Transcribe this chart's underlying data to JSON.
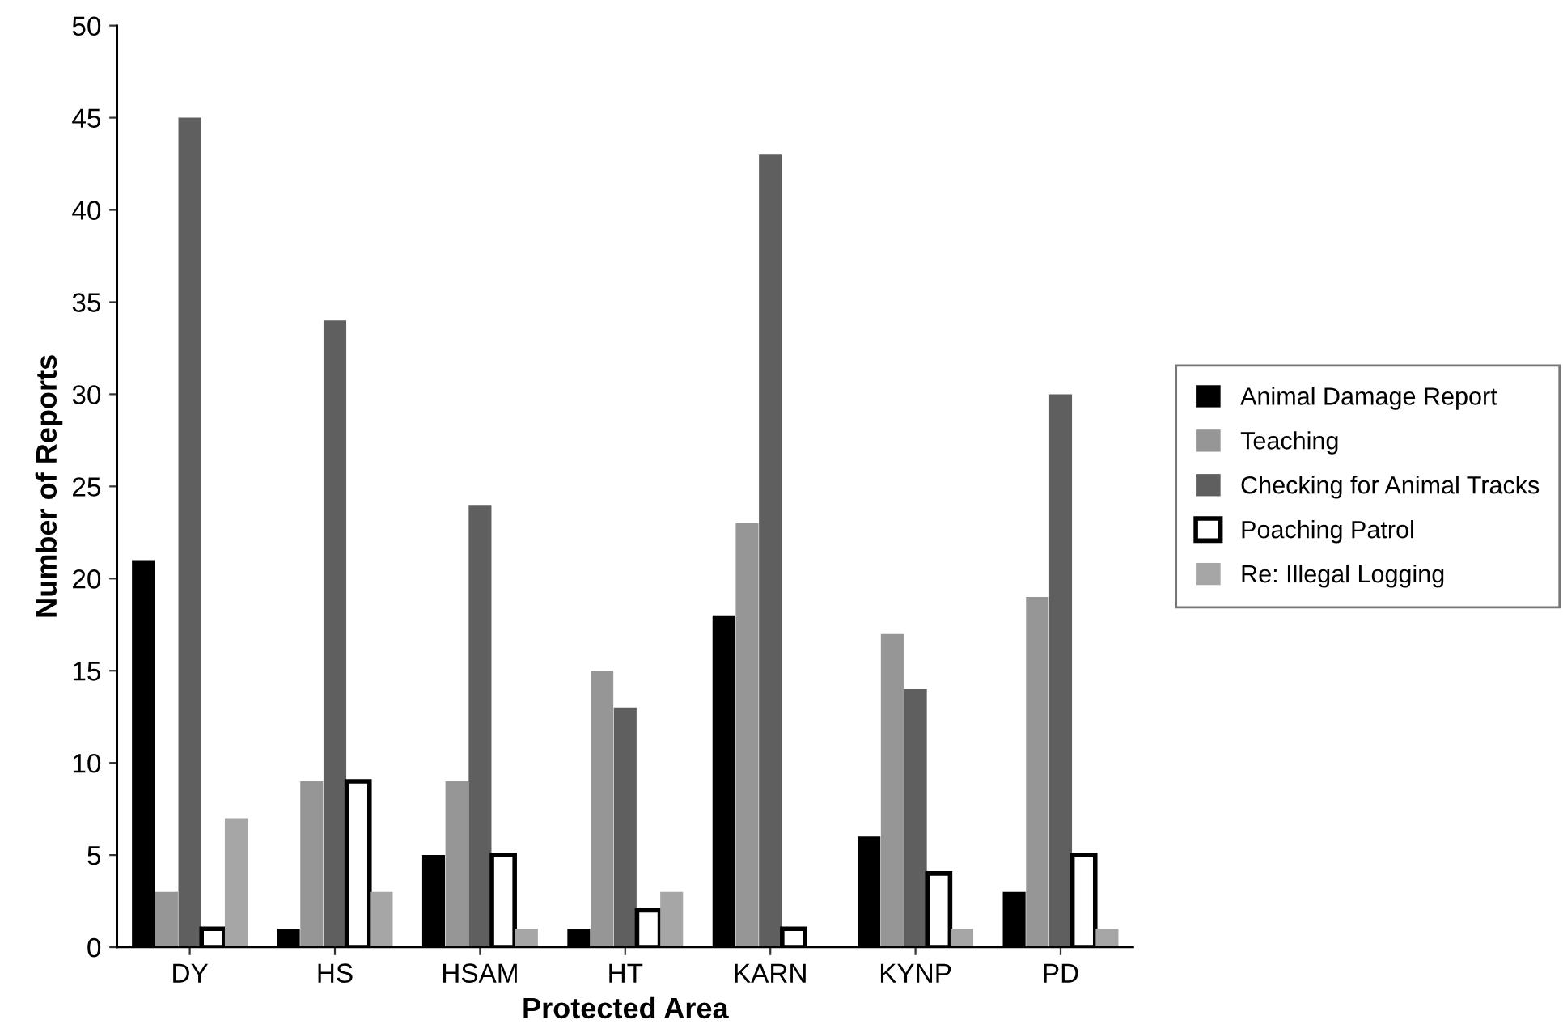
{
  "chart_data": {
    "type": "bar",
    "xlabel": "Protected Area",
    "ylabel": "Number of Reports",
    "categories": [
      "DY",
      "HS",
      "HSAM",
      "HT",
      "KARN",
      "KYNP",
      "PD"
    ],
    "series": [
      {
        "name": "Animal Damage Report",
        "color": "#000000",
        "values": [
          21,
          1,
          5,
          1,
          18,
          6,
          3
        ]
      },
      {
        "name": "Teaching",
        "color": "#969696",
        "values": [
          3,
          9,
          9,
          15,
          23,
          17,
          19
        ]
      },
      {
        "name": "Checking for Animal Tracks",
        "color": "#5f5f5f",
        "values": [
          45,
          34,
          24,
          13,
          43,
          14,
          30
        ]
      },
      {
        "name": "Poaching Patrol",
        "color": "#ffffff",
        "values": [
          1,
          9,
          5,
          2,
          1,
          4,
          5
        ]
      },
      {
        "name": "Re: Illegal Logging",
        "color": "#a6a6a6",
        "values": [
          7,
          3,
          1,
          3,
          0,
          1,
          1
        ]
      }
    ],
    "ylim": [
      0,
      50
    ],
    "yticks": [
      0,
      5,
      10,
      15,
      20,
      25,
      30,
      35,
      40,
      45,
      50
    ],
    "grid": false,
    "legend": "right"
  }
}
